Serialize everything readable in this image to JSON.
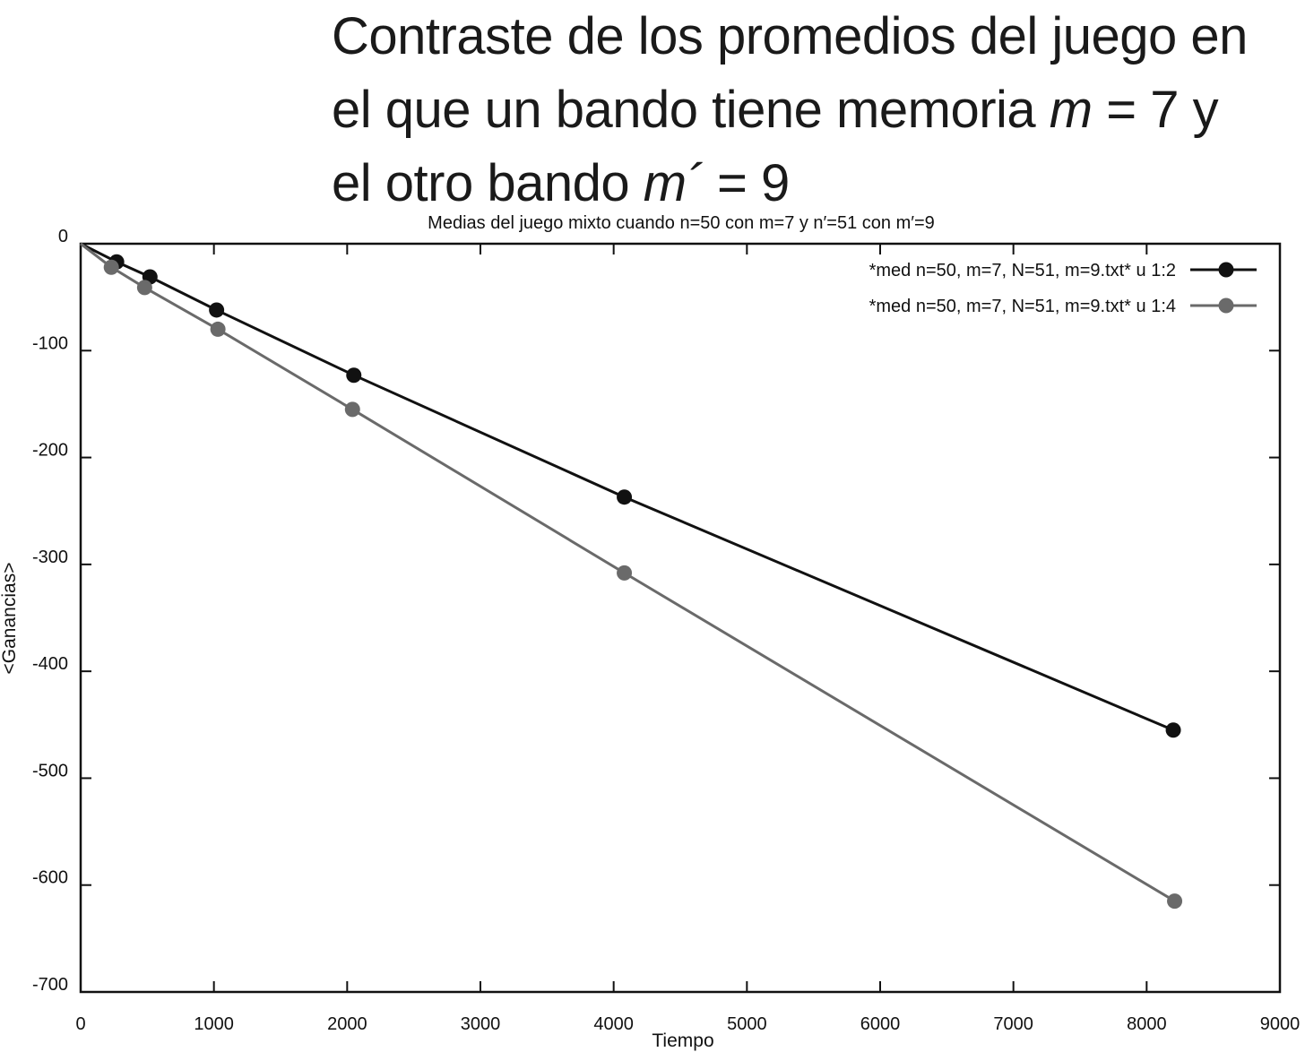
{
  "caption": {
    "line1": "Contraste de los promedios del juego en",
    "line2_text": "el que un bando tiene memoria ",
    "line2_math": "m",
    "line2_rest": " = 7 y",
    "line3_text": "el otro bando ",
    "line3_math": "m´",
    "line3_rest": " = 9"
  },
  "chart_data": {
    "type": "line",
    "title": "Medias del juego mixto cuando n=50 con m=7 y n′=51 con m′=9",
    "xlabel": "Tiempo",
    "ylabel": "<Ganancias>",
    "xlim": [
      0,
      9000
    ],
    "ylim": [
      -700,
      0
    ],
    "xticks": [
      0,
      1000,
      2000,
      3000,
      4000,
      5000,
      6000,
      7000,
      8000,
      9000
    ],
    "yticks": [
      0,
      -100,
      -200,
      -300,
      -400,
      -500,
      -600,
      -700
    ],
    "legend_position": "top-right",
    "grid": false,
    "series": [
      {
        "name": "*med n=50, m=7, N=51, m=9.txt* u 1:2",
        "color": "#111111",
        "marker": "circle",
        "x": [
          0,
          270,
          520,
          1020,
          2050,
          4080,
          8200
        ],
        "y": [
          0,
          -17,
          -31,
          -62,
          -123,
          -237,
          -455
        ]
      },
      {
        "name": "*med n=50, m=7, N=51, m=9.txt* u 1:4",
        "color": "#6a6a6a",
        "marker": "circle",
        "x": [
          0,
          230,
          480,
          1030,
          2040,
          4080,
          8210
        ],
        "y": [
          0,
          -22,
          -41,
          -80,
          -155,
          -308,
          -615
        ]
      }
    ]
  }
}
